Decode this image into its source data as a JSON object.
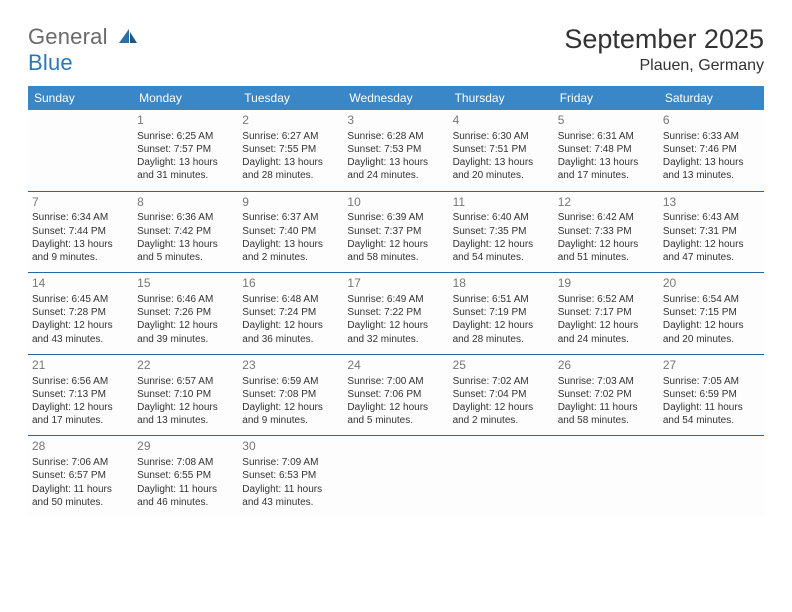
{
  "brand": {
    "line1": "General",
    "line2": "Blue"
  },
  "title": "September 2025",
  "subtitle": "Plauen, Germany",
  "colors": {
    "header_bg": "#3a87c7",
    "header_text": "#ffffff",
    "brand_gray": "#6a6a6a",
    "brand_blue": "#2979b8",
    "week_separator": "#2a65a0",
    "daynum_color": "#777777",
    "text_color": "#333333",
    "page_bg": "#ffffff",
    "cell_bg": "#fdfdfd"
  },
  "font": {
    "family": "Arial",
    "day_header_pt": 12,
    "title_pt": 27,
    "subtitle_pt": 16,
    "detail_pt": 10,
    "daynum_pt": 12
  },
  "layout": {
    "columns": 7,
    "rows_with_content": 5,
    "start_day_index": 1
  },
  "day_headers": [
    "Sunday",
    "Monday",
    "Tuesday",
    "Wednesday",
    "Thursday",
    "Friday",
    "Saturday"
  ],
  "weeks": [
    [
      null,
      {
        "n": "1",
        "sunrise": "Sunrise: 6:25 AM",
        "sunset": "Sunset: 7:57 PM",
        "dl1": "Daylight: 13 hours",
        "dl2": "and 31 minutes."
      },
      {
        "n": "2",
        "sunrise": "Sunrise: 6:27 AM",
        "sunset": "Sunset: 7:55 PM",
        "dl1": "Daylight: 13 hours",
        "dl2": "and 28 minutes."
      },
      {
        "n": "3",
        "sunrise": "Sunrise: 6:28 AM",
        "sunset": "Sunset: 7:53 PM",
        "dl1": "Daylight: 13 hours",
        "dl2": "and 24 minutes."
      },
      {
        "n": "4",
        "sunrise": "Sunrise: 6:30 AM",
        "sunset": "Sunset: 7:51 PM",
        "dl1": "Daylight: 13 hours",
        "dl2": "and 20 minutes."
      },
      {
        "n": "5",
        "sunrise": "Sunrise: 6:31 AM",
        "sunset": "Sunset: 7:48 PM",
        "dl1": "Daylight: 13 hours",
        "dl2": "and 17 minutes."
      },
      {
        "n": "6",
        "sunrise": "Sunrise: 6:33 AM",
        "sunset": "Sunset: 7:46 PM",
        "dl1": "Daylight: 13 hours",
        "dl2": "and 13 minutes."
      }
    ],
    [
      {
        "n": "7",
        "sunrise": "Sunrise: 6:34 AM",
        "sunset": "Sunset: 7:44 PM",
        "dl1": "Daylight: 13 hours",
        "dl2": "and 9 minutes."
      },
      {
        "n": "8",
        "sunrise": "Sunrise: 6:36 AM",
        "sunset": "Sunset: 7:42 PM",
        "dl1": "Daylight: 13 hours",
        "dl2": "and 5 minutes."
      },
      {
        "n": "9",
        "sunrise": "Sunrise: 6:37 AM",
        "sunset": "Sunset: 7:40 PM",
        "dl1": "Daylight: 13 hours",
        "dl2": "and 2 minutes."
      },
      {
        "n": "10",
        "sunrise": "Sunrise: 6:39 AM",
        "sunset": "Sunset: 7:37 PM",
        "dl1": "Daylight: 12 hours",
        "dl2": "and 58 minutes."
      },
      {
        "n": "11",
        "sunrise": "Sunrise: 6:40 AM",
        "sunset": "Sunset: 7:35 PM",
        "dl1": "Daylight: 12 hours",
        "dl2": "and 54 minutes."
      },
      {
        "n": "12",
        "sunrise": "Sunrise: 6:42 AM",
        "sunset": "Sunset: 7:33 PM",
        "dl1": "Daylight: 12 hours",
        "dl2": "and 51 minutes."
      },
      {
        "n": "13",
        "sunrise": "Sunrise: 6:43 AM",
        "sunset": "Sunset: 7:31 PM",
        "dl1": "Daylight: 12 hours",
        "dl2": "and 47 minutes."
      }
    ],
    [
      {
        "n": "14",
        "sunrise": "Sunrise: 6:45 AM",
        "sunset": "Sunset: 7:28 PM",
        "dl1": "Daylight: 12 hours",
        "dl2": "and 43 minutes."
      },
      {
        "n": "15",
        "sunrise": "Sunrise: 6:46 AM",
        "sunset": "Sunset: 7:26 PM",
        "dl1": "Daylight: 12 hours",
        "dl2": "and 39 minutes."
      },
      {
        "n": "16",
        "sunrise": "Sunrise: 6:48 AM",
        "sunset": "Sunset: 7:24 PM",
        "dl1": "Daylight: 12 hours",
        "dl2": "and 36 minutes."
      },
      {
        "n": "17",
        "sunrise": "Sunrise: 6:49 AM",
        "sunset": "Sunset: 7:22 PM",
        "dl1": "Daylight: 12 hours",
        "dl2": "and 32 minutes."
      },
      {
        "n": "18",
        "sunrise": "Sunrise: 6:51 AM",
        "sunset": "Sunset: 7:19 PM",
        "dl1": "Daylight: 12 hours",
        "dl2": "and 28 minutes."
      },
      {
        "n": "19",
        "sunrise": "Sunrise: 6:52 AM",
        "sunset": "Sunset: 7:17 PM",
        "dl1": "Daylight: 12 hours",
        "dl2": "and 24 minutes."
      },
      {
        "n": "20",
        "sunrise": "Sunrise: 6:54 AM",
        "sunset": "Sunset: 7:15 PM",
        "dl1": "Daylight: 12 hours",
        "dl2": "and 20 minutes."
      }
    ],
    [
      {
        "n": "21",
        "sunrise": "Sunrise: 6:56 AM",
        "sunset": "Sunset: 7:13 PM",
        "dl1": "Daylight: 12 hours",
        "dl2": "and 17 minutes."
      },
      {
        "n": "22",
        "sunrise": "Sunrise: 6:57 AM",
        "sunset": "Sunset: 7:10 PM",
        "dl1": "Daylight: 12 hours",
        "dl2": "and 13 minutes."
      },
      {
        "n": "23",
        "sunrise": "Sunrise: 6:59 AM",
        "sunset": "Sunset: 7:08 PM",
        "dl1": "Daylight: 12 hours",
        "dl2": "and 9 minutes."
      },
      {
        "n": "24",
        "sunrise": "Sunrise: 7:00 AM",
        "sunset": "Sunset: 7:06 PM",
        "dl1": "Daylight: 12 hours",
        "dl2": "and 5 minutes."
      },
      {
        "n": "25",
        "sunrise": "Sunrise: 7:02 AM",
        "sunset": "Sunset: 7:04 PM",
        "dl1": "Daylight: 12 hours",
        "dl2": "and 2 minutes."
      },
      {
        "n": "26",
        "sunrise": "Sunrise: 7:03 AM",
        "sunset": "Sunset: 7:02 PM",
        "dl1": "Daylight: 11 hours",
        "dl2": "and 58 minutes."
      },
      {
        "n": "27",
        "sunrise": "Sunrise: 7:05 AM",
        "sunset": "Sunset: 6:59 PM",
        "dl1": "Daylight: 11 hours",
        "dl2": "and 54 minutes."
      }
    ],
    [
      {
        "n": "28",
        "sunrise": "Sunrise: 7:06 AM",
        "sunset": "Sunset: 6:57 PM",
        "dl1": "Daylight: 11 hours",
        "dl2": "and 50 minutes."
      },
      {
        "n": "29",
        "sunrise": "Sunrise: 7:08 AM",
        "sunset": "Sunset: 6:55 PM",
        "dl1": "Daylight: 11 hours",
        "dl2": "and 46 minutes."
      },
      {
        "n": "30",
        "sunrise": "Sunrise: 7:09 AM",
        "sunset": "Sunset: 6:53 PM",
        "dl1": "Daylight: 11 hours",
        "dl2": "and 43 minutes."
      },
      null,
      null,
      null,
      null
    ]
  ]
}
